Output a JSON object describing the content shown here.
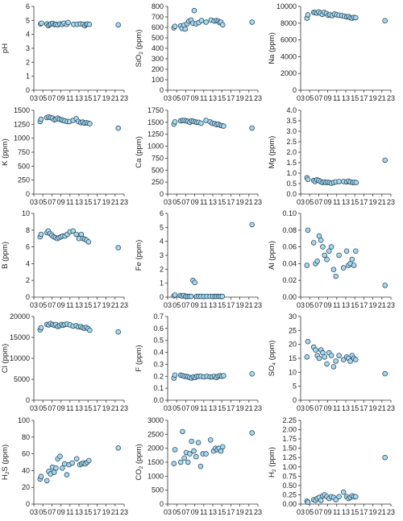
{
  "colors": {
    "marker_fill": "#a9d8ec",
    "marker_stroke": "#2a4d66",
    "axis": "#333333"
  },
  "chart_data": [
    {
      "type": "scatter",
      "ylabel": "pH",
      "xticks": [
        "03",
        "05",
        "07",
        "09",
        "11",
        "13",
        "15",
        "17",
        "19",
        "21",
        "23"
      ],
      "xlim": [
        3,
        23
      ],
      "yticks": [
        "0",
        "1",
        "2",
        "3",
        "4",
        "5",
        "6"
      ],
      "ylim": [
        0,
        6
      ],
      "x": [
        4.5,
        4.7,
        5.9,
        6.2,
        6.5,
        6.8,
        7.2,
        7.6,
        7.9,
        8.3,
        8.8,
        9.3,
        9.7,
        10.3,
        10.6,
        11.8,
        12.6,
        13.3,
        13.9,
        14.3,
        14.6,
        14.9,
        15.3,
        21.7
      ],
      "y": [
        4.75,
        4.8,
        4.75,
        4.62,
        4.7,
        4.75,
        4.78,
        4.7,
        4.72,
        4.68,
        4.75,
        4.72,
        4.8,
        4.72,
        4.85,
        4.72,
        4.72,
        4.75,
        4.72,
        4.62,
        4.72,
        4.74,
        4.72,
        4.68
      ]
    },
    {
      "type": "scatter",
      "ylabel": "SiO2 (ppm)",
      "xticks": [
        "03",
        "05",
        "07",
        "09",
        "11",
        "13",
        "15",
        "17",
        "19",
        "21",
        "23"
      ],
      "xlim": [
        3,
        23
      ],
      "yticks": [
        "0",
        "100",
        "200",
        "300",
        "400",
        "500",
        "600",
        "700",
        "800"
      ],
      "ylim": [
        0,
        800
      ],
      "x": [
        4.4,
        4.6,
        5.9,
        6.2,
        6.6,
        6.9,
        7.3,
        7.7,
        8.2,
        8.6,
        8.9,
        9.3,
        9.9,
        10.5,
        11.5,
        12.6,
        13.3,
        13.8,
        14.2,
        14.5,
        14.8,
        15.2,
        21.7
      ],
      "y": [
        595,
        610,
        615,
        590,
        620,
        585,
        635,
        660,
        670,
        640,
        760,
        635,
        645,
        665,
        650,
        670,
        660,
        665,
        660,
        645,
        650,
        625,
        650
      ]
    },
    {
      "type": "scatter",
      "ylabel": "Na (ppm)",
      "xticks": [
        "03",
        "05",
        "07",
        "09",
        "11",
        "13",
        "15",
        "17",
        "19",
        "21",
        "23"
      ],
      "xlim": [
        3,
        23
      ],
      "yticks": [
        "0",
        "2000",
        "4000",
        "6000",
        "8000",
        "10000"
      ],
      "ylim": [
        0,
        10000
      ],
      "x": [
        4.4,
        4.6,
        5.9,
        6.2,
        6.6,
        7.0,
        7.4,
        7.8,
        8.2,
        8.7,
        9.1,
        9.5,
        10.0,
        10.5,
        11.0,
        11.5,
        12.1,
        12.7,
        13.2,
        13.6,
        14.0,
        14.4,
        14.8,
        15.2,
        21.7
      ],
      "y": [
        8600,
        9000,
        9300,
        9250,
        9200,
        9350,
        9200,
        9050,
        9300,
        9150,
        8950,
        9000,
        8900,
        9100,
        9000,
        8950,
        8900,
        8850,
        8750,
        8800,
        8650,
        8600,
        8700,
        8650,
        8300
      ]
    },
    {
      "type": "scatter",
      "ylabel": "K (ppm)",
      "xticks": [
        "03",
        "05",
        "07",
        "09",
        "11",
        "13",
        "15",
        "17",
        "19",
        "21",
        "23"
      ],
      "xlim": [
        3,
        23
      ],
      "yticks": [
        "0",
        "250",
        "500",
        "750",
        "1000",
        "1250",
        "1500"
      ],
      "ylim": [
        0,
        1500
      ],
      "x": [
        4.4,
        4.6,
        5.9,
        6.3,
        6.7,
        7.1,
        7.5,
        7.9,
        8.3,
        8.7,
        9.1,
        9.5,
        9.9,
        10.4,
        10.9,
        11.7,
        12.4,
        12.9,
        13.4,
        13.8,
        14.2,
        14.6,
        15.0,
        15.4,
        21.7
      ],
      "y": [
        1300,
        1340,
        1370,
        1380,
        1370,
        1360,
        1330,
        1340,
        1360,
        1340,
        1330,
        1320,
        1310,
        1300,
        1300,
        1320,
        1350,
        1300,
        1280,
        1290,
        1270,
        1280,
        1270,
        1260,
        1180
      ]
    },
    {
      "type": "scatter",
      "ylabel": "Ca (ppm)",
      "xticks": [
        "03",
        "05",
        "07",
        "09",
        "11",
        "13",
        "15",
        "17",
        "19",
        "21",
        "23"
      ],
      "xlim": [
        3,
        23
      ],
      "yticks": [
        "0",
        "250",
        "500",
        "750",
        "1000",
        "1250",
        "1500",
        "1750"
      ],
      "ylim": [
        0,
        1750
      ],
      "x": [
        4.4,
        4.6,
        5.9,
        6.3,
        6.7,
        7.1,
        7.5,
        7.9,
        8.3,
        8.7,
        9.1,
        9.5,
        9.9,
        10.4,
        11.5,
        12.4,
        12.9,
        13.4,
        13.8,
        14.2,
        14.6,
        15.0,
        15.4,
        21.7
      ],
      "y": [
        1460,
        1510,
        1530,
        1540,
        1540,
        1530,
        1520,
        1500,
        1530,
        1520,
        1510,
        1500,
        1500,
        1480,
        1540,
        1510,
        1480,
        1470,
        1450,
        1460,
        1440,
        1430,
        1420,
        1380
      ]
    },
    {
      "type": "scatter",
      "ylabel": "Mg (ppm)",
      "xticks": [
        "03",
        "05",
        "07",
        "09",
        "11",
        "13",
        "15",
        "17",
        "19",
        "21",
        "23"
      ],
      "xlim": [
        3,
        23
      ],
      "yticks": [
        "0.0",
        "0.5",
        "1.0",
        "1.5",
        "2.0",
        "2.5",
        "3.0",
        "3.5",
        "4.0"
      ],
      "ylim": [
        0,
        4
      ],
      "x": [
        4.4,
        4.6,
        5.9,
        6.2,
        6.6,
        7.0,
        7.4,
        7.8,
        8.2,
        8.6,
        9.0,
        9.4,
        9.8,
        10.3,
        10.8,
        11.5,
        12.5,
        13.2,
        13.6,
        14.0,
        14.5,
        14.9,
        15.3,
        21.7
      ],
      "y": [
        0.78,
        0.7,
        0.65,
        0.6,
        0.68,
        0.65,
        0.6,
        0.55,
        0.58,
        0.55,
        0.56,
        0.55,
        0.52,
        0.55,
        0.58,
        0.6,
        0.6,
        0.58,
        0.62,
        0.58,
        0.55,
        0.56,
        0.55,
        1.62
      ]
    },
    {
      "type": "scatter",
      "ylabel": "B (ppm)",
      "xticks": [
        "03",
        "05",
        "07",
        "09",
        "11",
        "13",
        "15",
        "17",
        "19",
        "21",
        "23"
      ],
      "xlim": [
        3,
        23
      ],
      "yticks": [
        "0",
        "2",
        "4",
        "6",
        "8",
        "10"
      ],
      "ylim": [
        0,
        10
      ],
      "x": [
        4.4,
        4.6,
        5.9,
        6.2,
        6.6,
        7.0,
        7.4,
        7.8,
        8.2,
        8.6,
        9.0,
        9.4,
        9.9,
        10.4,
        11.0,
        11.7,
        12.4,
        13.0,
        13.5,
        13.9,
        14.3,
        14.7,
        15.1,
        21.7
      ],
      "y": [
        7.2,
        7.5,
        7.7,
        7.9,
        7.6,
        7.4,
        7.2,
        7.1,
        7.0,
        7.1,
        7.2,
        7.3,
        7.3,
        7.5,
        7.8,
        7.9,
        7.5,
        7.0,
        7.5,
        7.0,
        6.9,
        6.8,
        6.6,
        5.9
      ]
    },
    {
      "type": "scatter",
      "ylabel": "Fe (ppm)",
      "xticks": [
        "03",
        "05",
        "07",
        "09",
        "11",
        "13",
        "15",
        "17",
        "19",
        "21",
        "23"
      ],
      "xlim": [
        3,
        23
      ],
      "yticks": [
        "0",
        "1",
        "2",
        "3",
        "4",
        "5",
        "6"
      ],
      "ylim": [
        0,
        6
      ],
      "x": [
        4.4,
        4.6,
        5.8,
        6.2,
        6.6,
        7.0,
        7.4,
        7.8,
        8.2,
        8.6,
        9.0,
        9.4,
        9.9,
        10.4,
        11.0,
        11.7,
        12.4,
        13.0,
        13.5,
        13.9,
        14.3,
        14.7,
        15.1,
        21.7
      ],
      "y": [
        0.1,
        0.15,
        0.12,
        0.08,
        0.12,
        0.05,
        0.05,
        0.05,
        0.05,
        1.2,
        1.05,
        0.05,
        0.05,
        0.05,
        0.05,
        0.05,
        0.05,
        0.05,
        0.05,
        0.05,
        0.05,
        0.05,
        0.05,
        5.2
      ]
    },
    {
      "type": "scatter",
      "ylabel": "Al (ppm)",
      "xticks": [
        "03",
        "05",
        "07",
        "09",
        "11",
        "13",
        "15",
        "17",
        "19",
        "21",
        "23"
      ],
      "xlim": [
        3,
        23
      ],
      "yticks": [
        "0.00",
        "0.02",
        "0.04",
        "0.06",
        "0.08",
        "0.10"
      ],
      "ylim": [
        0,
        0.1
      ],
      "x": [
        4.4,
        4.6,
        5.9,
        6.3,
        6.7,
        7.1,
        7.5,
        7.9,
        8.3,
        8.8,
        9.3,
        9.8,
        10.3,
        10.8,
        11.5,
        12.5,
        13.2,
        13.6,
        14.0,
        14.4,
        14.8,
        15.2,
        21.7
      ],
      "y": [
        0.038,
        0.08,
        0.065,
        0.04,
        0.043,
        0.073,
        0.068,
        0.06,
        0.05,
        0.045,
        0.055,
        0.06,
        0.033,
        0.025,
        0.05,
        0.035,
        0.055,
        0.038,
        0.04,
        0.045,
        0.038,
        0.055,
        0.014
      ]
    },
    {
      "type": "scatter",
      "ylabel": "Cl (ppm)",
      "xticks": [
        "03",
        "05",
        "07",
        "09",
        "11",
        "13",
        "15",
        "17",
        "19",
        "21",
        "23"
      ],
      "xlim": [
        3,
        23
      ],
      "yticks": [
        "0",
        "5000",
        "10000",
        "15000",
        "20000"
      ],
      "ylim": [
        0,
        20000
      ],
      "x": [
        4.4,
        4.6,
        5.9,
        6.3,
        6.7,
        7.1,
        7.5,
        7.9,
        8.3,
        8.7,
        9.1,
        9.5,
        9.9,
        10.4,
        11.0,
        11.7,
        12.4,
        12.9,
        13.4,
        13.8,
        14.2,
        14.6,
        15.0,
        15.4,
        21.7
      ],
      "y": [
        16800,
        17300,
        18100,
        18000,
        18300,
        18100,
        17900,
        18100,
        17600,
        17800,
        18100,
        17900,
        18100,
        18200,
        18000,
        17700,
        17800,
        17500,
        17600,
        17300,
        17200,
        17400,
        17100,
        16700,
        16300
      ]
    },
    {
      "type": "scatter",
      "ylabel": "F (ppm)",
      "xticks": [
        "03",
        "05",
        "07",
        "09",
        "11",
        "13",
        "15",
        "17",
        "19",
        "21",
        "23"
      ],
      "xlim": [
        3,
        23
      ],
      "yticks": [
        "0.0",
        "0.1",
        "0.2",
        "0.3",
        "0.4",
        "0.5",
        "0.6",
        "0.7"
      ],
      "ylim": [
        0,
        0.7
      ],
      "x": [
        4.4,
        4.6,
        5.9,
        6.3,
        6.7,
        7.1,
        7.5,
        7.9,
        8.3,
        8.7,
        9.1,
        9.5,
        9.9,
        10.4,
        11.0,
        11.7,
        12.4,
        12.9,
        13.4,
        13.8,
        14.2,
        14.6,
        15.0,
        15.4,
        21.7
      ],
      "y": [
        0.185,
        0.21,
        0.21,
        0.205,
        0.2,
        0.2,
        0.195,
        0.19,
        0.185,
        0.195,
        0.19,
        0.2,
        0.2,
        0.2,
        0.195,
        0.2,
        0.195,
        0.195,
        0.2,
        0.19,
        0.2,
        0.205,
        0.2,
        0.205,
        0.22
      ]
    },
    {
      "type": "scatter",
      "ylabel": "SO4 (ppm)",
      "xticks": [
        "03",
        "05",
        "07",
        "09",
        "11",
        "13",
        "15",
        "17",
        "19",
        "21",
        "23"
      ],
      "xlim": [
        3,
        23
      ],
      "yticks": [
        "0",
        "5",
        "10",
        "15",
        "20",
        "25",
        "30"
      ],
      "ylim": [
        0,
        30
      ],
      "x": [
        4.4,
        4.6,
        5.9,
        6.3,
        6.7,
        7.1,
        7.5,
        7.9,
        8.3,
        8.8,
        9.3,
        9.8,
        10.3,
        10.8,
        11.5,
        12.5,
        13.2,
        13.6,
        14.0,
        14.4,
        14.8,
        15.2,
        21.7
      ],
      "y": [
        15.5,
        21,
        19,
        18,
        16,
        15,
        18,
        17,
        15.5,
        13,
        17,
        16,
        12,
        14,
        16,
        14.5,
        15.5,
        15,
        14,
        16,
        15,
        14.5,
        9.5
      ]
    },
    {
      "type": "scatter",
      "ylabel": "H2S (ppm)",
      "xticks": [
        "03",
        "05",
        "07",
        "09",
        "11",
        "13",
        "15",
        "17",
        "19",
        "21",
        "23"
      ],
      "xlim": [
        3,
        23
      ],
      "yticks": [
        "0",
        "20",
        "40",
        "60",
        "80",
        "100"
      ],
      "ylim": [
        0,
        100
      ],
      "x": [
        4.4,
        4.6,
        5.9,
        6.3,
        6.7,
        7.1,
        7.5,
        7.9,
        8.3,
        8.8,
        9.3,
        9.8,
        10.3,
        10.8,
        11.5,
        12.5,
        13.2,
        13.6,
        14.0,
        14.4,
        14.8,
        15.2,
        21.7
      ],
      "y": [
        30,
        33,
        28,
        39,
        36,
        44,
        38,
        43,
        54,
        57,
        43,
        48,
        35,
        47,
        49,
        54,
        47,
        48,
        49,
        48,
        50,
        52,
        67
      ]
    },
    {
      "type": "scatter",
      "ylabel": "CO2 (ppm)",
      "xticks": [
        "03",
        "05",
        "07",
        "09",
        "11",
        "13",
        "15",
        "17",
        "19",
        "21",
        "23"
      ],
      "xlim": [
        3,
        23
      ],
      "yticks": [
        "0",
        "500",
        "1000",
        "1500",
        "2000",
        "2500",
        "3000"
      ],
      "ylim": [
        0,
        3000
      ],
      "x": [
        4.4,
        4.6,
        5.9,
        6.3,
        6.7,
        7.1,
        7.5,
        7.9,
        8.3,
        8.8,
        9.3,
        9.8,
        10.3,
        10.8,
        11.5,
        12.5,
        13.2,
        13.6,
        14.0,
        14.4,
        14.8,
        15.2,
        21.7
      ],
      "y": [
        1450,
        1950,
        1500,
        2600,
        1650,
        1850,
        1500,
        1800,
        2250,
        1900,
        1700,
        2200,
        1350,
        1800,
        1800,
        2300,
        1900,
        2000,
        1950,
        2000,
        1900,
        2050,
        2550
      ]
    },
    {
      "type": "scatter",
      "ylabel": "H2 (ppm)",
      "xticks": [
        "03",
        "05",
        "07",
        "09",
        "11",
        "13",
        "15",
        "17",
        "19",
        "21",
        "23"
      ],
      "xlim": [
        3,
        23
      ],
      "yticks": [
        "0.00",
        "0.25",
        "0.50",
        "0.75",
        "1.00",
        "1.25",
        "1.50",
        "1.75",
        "2.00",
        "2.25"
      ],
      "ylim": [
        0,
        2.25
      ],
      "x": [
        4.4,
        4.6,
        5.9,
        6.3,
        6.7,
        7.1,
        7.5,
        7.9,
        8.3,
        8.8,
        9.3,
        9.8,
        10.3,
        10.8,
        11.5,
        12.5,
        13.2,
        13.6,
        14.0,
        14.4,
        14.8,
        15.2,
        21.7
      ],
      "y": [
        0.08,
        0.05,
        0.12,
        0.1,
        0.15,
        0.18,
        0.1,
        0.22,
        0.25,
        0.2,
        0.15,
        0.2,
        0.18,
        0.12,
        0.2,
        0.32,
        0.2,
        0.15,
        0.18,
        0.22,
        0.2,
        0.2,
        1.25
      ]
    }
  ]
}
